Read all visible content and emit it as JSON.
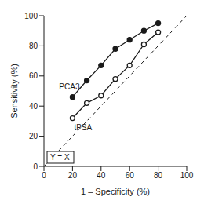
{
  "chart_data": {
    "type": "line",
    "x_label": "1 – Specificity (%)",
    "y_label": "Sensitivity (%)",
    "xlim": [
      0,
      100
    ],
    "ylim": [
      0,
      100
    ],
    "xticks": [
      0,
      20,
      40,
      60,
      80,
      100
    ],
    "yticks": [
      0,
      20,
      40,
      60,
      80,
      100
    ],
    "grid": false,
    "color": "#1a1a1a",
    "series": [
      {
        "name": "Y = X",
        "x": [
          0,
          100
        ],
        "values": [
          0,
          100
        ],
        "line_style": "dashed",
        "marker": "none"
      },
      {
        "name": "tPSA",
        "x": [
          20,
          30,
          40,
          50,
          60,
          70,
          80
        ],
        "values": [
          32,
          42,
          47,
          58,
          67,
          81,
          89
        ],
        "line_style": "solid",
        "marker": "open_circle"
      },
      {
        "name": "PCA3",
        "x": [
          20,
          30,
          40,
          50,
          60,
          70,
          80
        ],
        "values": [
          46,
          57,
          67,
          78,
          84,
          90,
          95
        ],
        "line_style": "solid",
        "marker": "filled_circle"
      }
    ]
  }
}
